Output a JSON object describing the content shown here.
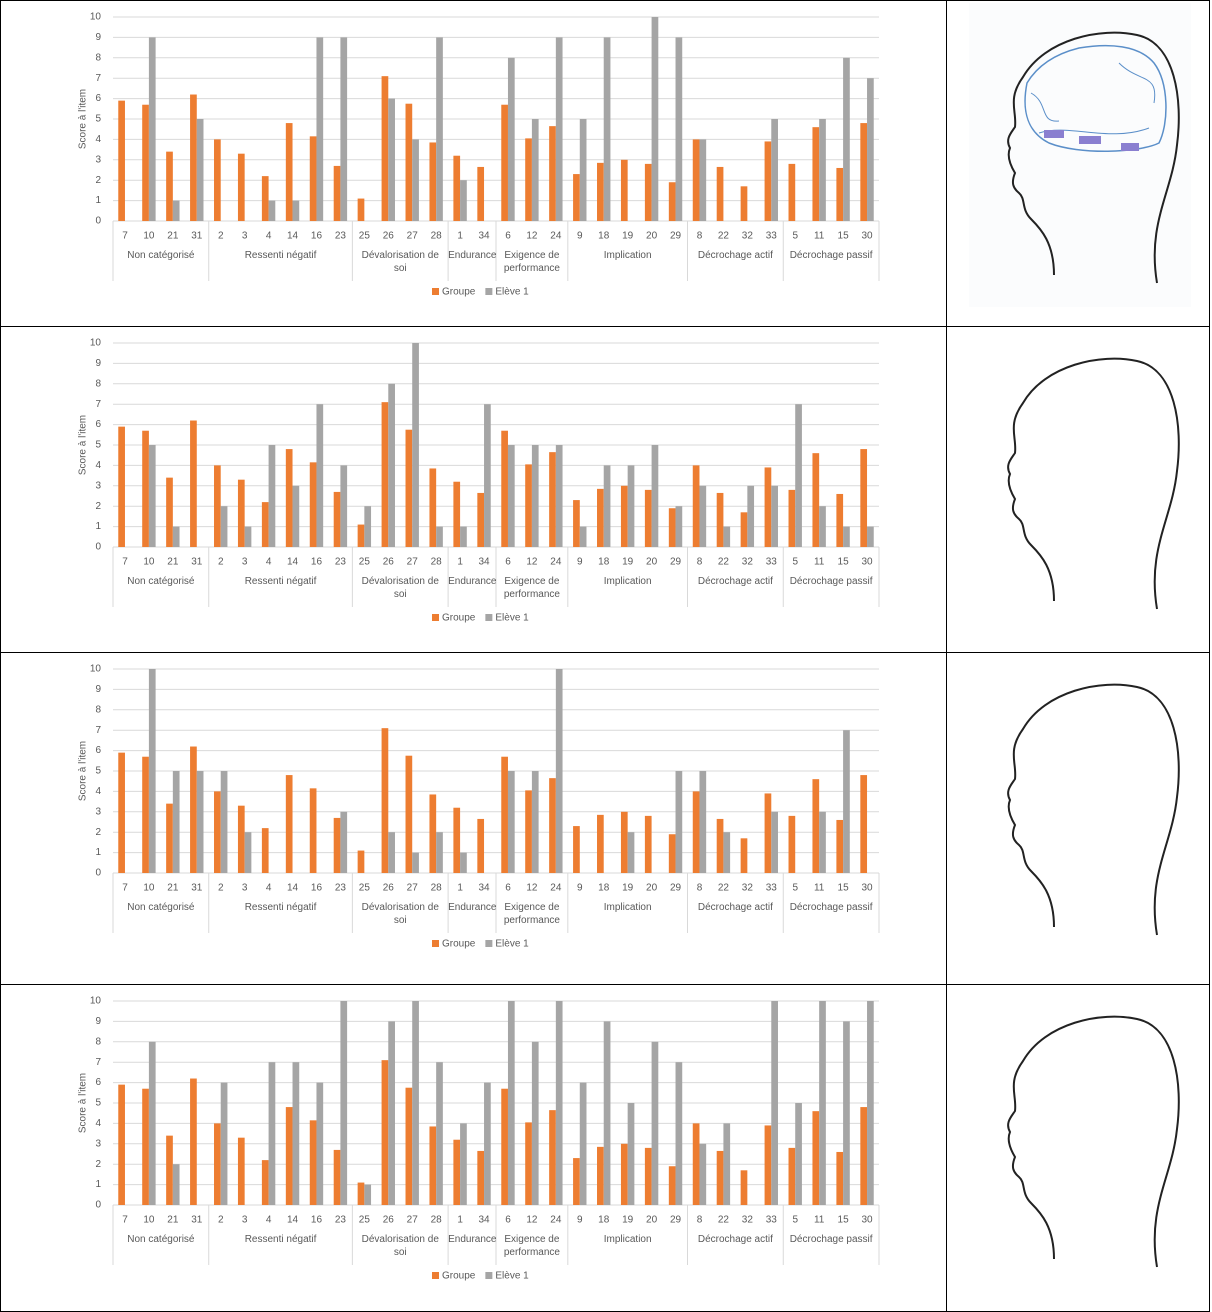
{
  "chart_data": [
    {
      "type": "bar",
      "y_label": "Score à l'item",
      "ylim": [
        0,
        10
      ],
      "yticks": [
        0,
        1,
        2,
        3,
        4,
        5,
        6,
        7,
        8,
        9,
        10
      ],
      "groups": [
        {
          "label": "Non catégorisé",
          "categories": [
            "7",
            "10",
            "21",
            "31"
          ]
        },
        {
          "label": "Ressenti négatif",
          "categories": [
            "2",
            "3",
            "4",
            "14",
            "16",
            "23"
          ]
        },
        {
          "label": "Dévalorisation de soi",
          "categories": [
            "25",
            "26",
            "27",
            "28"
          ]
        },
        {
          "label": "Endurance",
          "categories": [
            "1",
            "34"
          ]
        },
        {
          "label": "Exigence de performance",
          "categories": [
            "6",
            "12",
            "24"
          ]
        },
        {
          "label": "Implication",
          "categories": [
            "9",
            "18",
            "19",
            "20",
            "29"
          ]
        },
        {
          "label": "Décrochage actif",
          "categories": [
            "8",
            "22",
            "32",
            "33"
          ]
        },
        {
          "label": "Décrochage passif",
          "categories": [
            "5",
            "11",
            "15",
            "30"
          ]
        }
      ],
      "series": [
        {
          "name": "Groupe",
          "color": "#ed7d31",
          "values": [
            5.9,
            5.7,
            3.4,
            6.2,
            4,
            3.3,
            2.2,
            4.8,
            4.15,
            2.7,
            1.1,
            7.1,
            5.75,
            3.85,
            3.2,
            2.65,
            5.7,
            4.05,
            4.65,
            2.3,
            2.85,
            3,
            2.8,
            1.9,
            4,
            2.65,
            1.7,
            3.9,
            2.8,
            4.6,
            2.6,
            4.8
          ]
        },
        {
          "name": "Elève 1",
          "color": "#a5a5a5",
          "values": [
            null,
            9,
            1,
            5,
            null,
            null,
            1,
            1,
            9,
            9,
            null,
            6,
            4,
            9,
            2,
            null,
            8,
            5,
            9,
            5,
            9,
            null,
            10,
            9,
            4,
            null,
            null,
            5,
            null,
            5,
            8,
            7
          ]
        }
      ]
    },
    {
      "type": "bar",
      "y_label": "Score à l'item",
      "ylim": [
        0,
        10
      ],
      "yticks": [
        0,
        1,
        2,
        3,
        4,
        5,
        6,
        7,
        8,
        9,
        10
      ],
      "groups": [
        {
          "label": "Non catégorisé",
          "categories": [
            "7",
            "10",
            "21",
            "31"
          ]
        },
        {
          "label": "Ressenti négatif",
          "categories": [
            "2",
            "3",
            "4",
            "14",
            "16",
            "23"
          ]
        },
        {
          "label": "Dévalorisation de soi",
          "categories": [
            "25",
            "26",
            "27",
            "28"
          ]
        },
        {
          "label": "Endurance",
          "categories": [
            "1",
            "34"
          ]
        },
        {
          "label": "Exigence de performance",
          "categories": [
            "6",
            "12",
            "24"
          ]
        },
        {
          "label": "Implication",
          "categories": [
            "9",
            "18",
            "19",
            "20",
            "29"
          ]
        },
        {
          "label": "Décrochage actif",
          "categories": [
            "8",
            "22",
            "32",
            "33"
          ]
        },
        {
          "label": "Décrochage passif",
          "categories": [
            "5",
            "11",
            "15",
            "30"
          ]
        }
      ],
      "series": [
        {
          "name": "Groupe",
          "color": "#ed7d31",
          "values": [
            5.9,
            5.7,
            3.4,
            6.2,
            4,
            3.3,
            2.2,
            4.8,
            4.15,
            2.7,
            1.1,
            7.1,
            5.75,
            3.85,
            3.2,
            2.65,
            5.7,
            4.05,
            4.65,
            2.3,
            2.85,
            3,
            2.8,
            1.9,
            4,
            2.65,
            1.7,
            3.9,
            2.8,
            4.6,
            2.6,
            4.8
          ]
        },
        {
          "name": "Elève 1",
          "color": "#a5a5a5",
          "values": [
            null,
            5,
            1,
            null,
            2,
            1,
            5,
            3,
            7,
            4,
            2,
            8,
            10,
            1,
            1,
            7,
            5,
            5,
            5,
            1,
            4,
            4,
            5,
            2,
            3,
            1,
            3,
            3,
            7,
            2,
            1,
            1
          ]
        }
      ]
    },
    {
      "type": "bar",
      "y_label": "Score à l'item",
      "ylim": [
        0,
        10
      ],
      "yticks": [
        0,
        1,
        2,
        3,
        4,
        5,
        6,
        7,
        8,
        9,
        10
      ],
      "groups": [
        {
          "label": "Non catégorisé",
          "categories": [
            "7",
            "10",
            "21",
            "31"
          ]
        },
        {
          "label": "Ressenti négatif",
          "categories": [
            "2",
            "3",
            "4",
            "14",
            "16",
            "23"
          ]
        },
        {
          "label": "Dévalorisation de soi",
          "categories": [
            "25",
            "26",
            "27",
            "28"
          ]
        },
        {
          "label": "Endurance",
          "categories": [
            "1",
            "34"
          ]
        },
        {
          "label": "Exigence de performance",
          "categories": [
            "6",
            "12",
            "24"
          ]
        },
        {
          "label": "Implication",
          "categories": [
            "9",
            "18",
            "19",
            "20",
            "29"
          ]
        },
        {
          "label": "Décrochage actif",
          "categories": [
            "8",
            "22",
            "32",
            "33"
          ]
        },
        {
          "label": "Décrochage passif",
          "categories": [
            "5",
            "11",
            "15",
            "30"
          ]
        }
      ],
      "series": [
        {
          "name": "Groupe",
          "color": "#ed7d31",
          "values": [
            5.9,
            5.7,
            3.4,
            6.2,
            4,
            3.3,
            2.2,
            4.8,
            4.15,
            2.7,
            1.1,
            7.1,
            5.75,
            3.85,
            3.2,
            2.65,
            5.7,
            4.05,
            4.65,
            2.3,
            2.85,
            3,
            2.8,
            1.9,
            4,
            2.65,
            1.7,
            3.9,
            2.8,
            4.6,
            2.6,
            4.8
          ]
        },
        {
          "name": "Elève 1",
          "color": "#a5a5a5",
          "values": [
            null,
            10,
            5,
            5,
            5,
            2,
            null,
            null,
            null,
            3,
            null,
            2,
            1,
            2,
            1,
            null,
            5,
            5,
            10,
            null,
            null,
            2,
            null,
            5,
            5,
            2,
            null,
            3,
            null,
            3,
            7,
            null
          ]
        }
      ]
    },
    {
      "type": "bar",
      "y_label": "Score à l'item",
      "ylim": [
        0,
        10
      ],
      "yticks": [
        0,
        1,
        2,
        3,
        4,
        5,
        6,
        7,
        8,
        9,
        10
      ],
      "groups": [
        {
          "label": "Non catégorisé",
          "categories": [
            "7",
            "10",
            "21",
            "31"
          ]
        },
        {
          "label": "Ressenti négatif",
          "categories": [
            "2",
            "3",
            "4",
            "14",
            "16",
            "23"
          ]
        },
        {
          "label": "Dévalorisation de soi",
          "categories": [
            "25",
            "26",
            "27",
            "28"
          ]
        },
        {
          "label": "Endurance",
          "categories": [
            "1",
            "34"
          ]
        },
        {
          "label": "Exigence de performance",
          "categories": [
            "6",
            "12",
            "24"
          ]
        },
        {
          "label": "Implication",
          "categories": [
            "9",
            "18",
            "19",
            "20",
            "29"
          ]
        },
        {
          "label": "Décrochage actif",
          "categories": [
            "8",
            "22",
            "32",
            "33"
          ]
        },
        {
          "label": "Décrochage passif",
          "categories": [
            "5",
            "11",
            "15",
            "30"
          ]
        }
      ],
      "series": [
        {
          "name": "Groupe",
          "color": "#ed7d31",
          "values": [
            5.9,
            5.7,
            3.4,
            6.2,
            4,
            3.3,
            2.2,
            4.8,
            4.15,
            2.7,
            1.1,
            7.1,
            5.75,
            3.85,
            3.2,
            2.65,
            5.7,
            4.05,
            4.65,
            2.3,
            2.85,
            3,
            2.8,
            1.9,
            4,
            2.65,
            1.7,
            3.9,
            2.8,
            4.6,
            2.6,
            4.8
          ]
        },
        {
          "name": "Elève 1",
          "color": "#a5a5a5",
          "values": [
            null,
            8,
            2,
            null,
            6,
            null,
            7,
            7,
            6,
            10,
            1,
            9,
            10,
            7,
            4,
            6,
            10,
            8,
            10,
            6,
            9,
            5,
            8,
            7,
            3,
            4,
            null,
            10,
            5,
            10,
            9,
            10
          ]
        }
      ]
    }
  ]
}
